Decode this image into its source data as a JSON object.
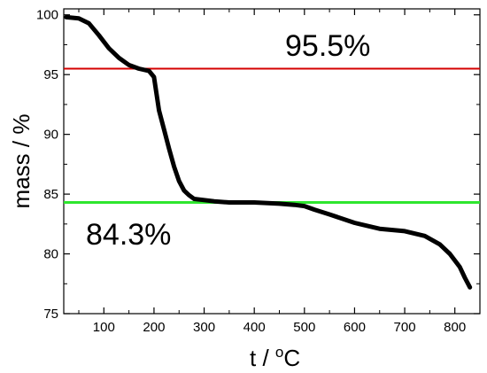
{
  "chart_data": {
    "type": "line",
    "xlabel_base": "t / ",
    "xlabel_sup": "o",
    "xlabel_unit": "C",
    "ylabel": "mass / %",
    "xlim": [
      20,
      850
    ],
    "ylim": [
      75,
      100.5
    ],
    "x_ticks": [
      100,
      200,
      300,
      400,
      500,
      600,
      700,
      800
    ],
    "y_ticks": [
      75,
      80,
      85,
      90,
      95,
      100
    ],
    "grid": false,
    "colors": {
      "curve": "#000000",
      "upper_line": "#d40000",
      "lower_line": "#2ee62e"
    },
    "reference_lines": [
      {
        "y": 95.5,
        "label": "95.5%",
        "color": "#d40000"
      },
      {
        "y": 84.3,
        "label": "84.3%",
        "color": "#2ee62e"
      }
    ],
    "series": [
      {
        "x": [
          25,
          50,
          70,
          90,
          110,
          130,
          150,
          170,
          190,
          200,
          210,
          220,
          230,
          240,
          250,
          260,
          270,
          280,
          300,
          320,
          350,
          400,
          450,
          480,
          500,
          520,
          550,
          600,
          650,
          700,
          740,
          770,
          790,
          810,
          820,
          830
        ],
        "y": [
          99.8,
          99.7,
          99.3,
          98.3,
          97.2,
          96.4,
          95.8,
          95.5,
          95.3,
          94.8,
          92.0,
          90.4,
          88.8,
          87.3,
          86.1,
          85.3,
          84.9,
          84.6,
          84.5,
          84.4,
          84.3,
          84.3,
          84.2,
          84.1,
          84.0,
          83.7,
          83.3,
          82.6,
          82.1,
          81.9,
          81.5,
          80.8,
          80.0,
          78.9,
          78.0,
          77.2
        ]
      }
    ]
  }
}
